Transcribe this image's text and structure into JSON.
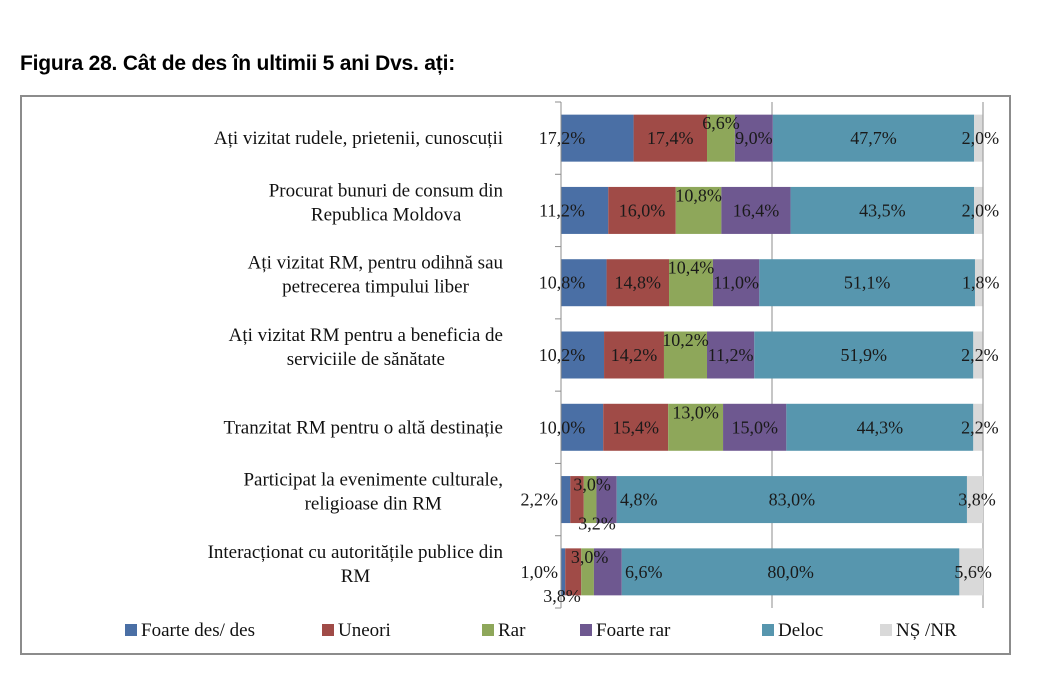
{
  "figure": {
    "title": "Figura 28. Cât de des în ultimii 5 ani Dvs. ați:"
  },
  "chart_data": {
    "type": "bar",
    "orientation": "horizontal",
    "stacked": "100%",
    "title": "Figura 28. Cât de des în ultimii 5 ani Dvs. ați:",
    "xlabel": "",
    "ylabel": "",
    "xlim": [
      0,
      100
    ],
    "grid": true,
    "legend_position": "bottom",
    "categories": [
      [
        "Ați vizitat rudele, prietenii, cunoscuții"
      ],
      [
        "Procurat bunuri de consum din",
        "Republica Moldova"
      ],
      [
        "Ați vizitat RM, pentru odihnă sau",
        "petrecerea timpului liber"
      ],
      [
        "Ați vizitat RM pentru a beneficia de",
        "serviciile de sănătate"
      ],
      [
        "Tranzitat RM pentru o altă destinație"
      ],
      [
        "Participat la evenimente culturale,",
        "religioase din RM"
      ],
      [
        "Interacționat cu autoritățile publice din",
        "RM"
      ]
    ],
    "series": [
      {
        "name": "Foarte des/ des",
        "color": "#4a6fa5",
        "values": [
          17.2,
          11.2,
          10.8,
          10.2,
          10.0,
          2.2,
          1.0
        ],
        "labels": [
          "17,2%",
          "11,2%",
          "10,8%",
          "10,2%",
          "10,0%",
          "2,2%",
          "1,0%"
        ]
      },
      {
        "name": "Uneori",
        "color": "#a04b47",
        "values": [
          17.4,
          16.0,
          14.8,
          14.2,
          15.4,
          3.2,
          3.8
        ],
        "labels": [
          "17,4%",
          "16,0%",
          "14,8%",
          "14,2%",
          "15,4%",
          "3,2%",
          "3,8%"
        ]
      },
      {
        "name": "Rar",
        "color": "#8ea75a",
        "values": [
          6.6,
          10.8,
          10.4,
          10.2,
          13.0,
          3.0,
          3.0
        ],
        "labels": [
          "6,6%",
          "10,8%",
          "10,4%",
          "10,2%",
          "13,0%",
          "3,0%",
          "3,0%"
        ]
      },
      {
        "name": "Foarte  rar",
        "color": "#6e5890",
        "values": [
          9.0,
          16.4,
          11.0,
          11.2,
          15.0,
          4.8,
          6.6
        ],
        "labels": [
          "9,0%",
          "16,4%",
          "11,0%",
          "11,2%",
          "15,0%",
          "4,8%",
          "6,6%"
        ]
      },
      {
        "name": "Deloc",
        "color": "#5796ae",
        "values": [
          47.7,
          43.5,
          51.1,
          51.9,
          44.3,
          83.0,
          80.0
        ],
        "labels": [
          "47,7%",
          "43,5%",
          "51,1%",
          "51,9%",
          "44,3%",
          "83,0%",
          "80,0%"
        ]
      },
      {
        "name": "NȘ /NR",
        "color": "#d9d9d9",
        "values": [
          2.0,
          2.0,
          1.8,
          2.2,
          2.2,
          3.8,
          5.6
        ],
        "labels": [
          "2,0%",
          "2,0%",
          "1,8%",
          "2,2%",
          "2,2%",
          "3,8%",
          "5,6%"
        ]
      }
    ]
  }
}
